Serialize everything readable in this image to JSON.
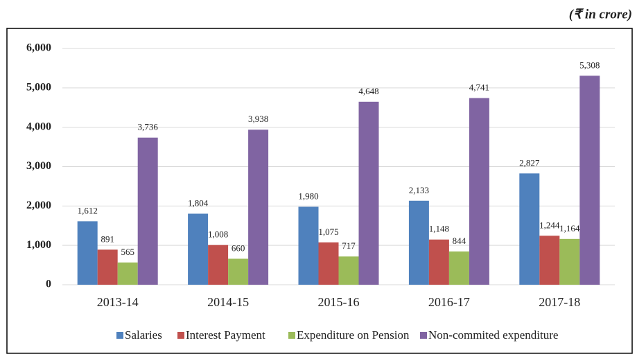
{
  "chart_data": {
    "type": "bar",
    "annotation": "(₹ in crore)",
    "categories": [
      "2013-14",
      "2014-15",
      "2015-16",
      "2016-17",
      "2017-18"
    ],
    "series": [
      {
        "name": "Salaries",
        "color": "#4f81bd",
        "values": [
          1612,
          1804,
          1980,
          2133,
          2827
        ],
        "value_labels": [
          "1,612",
          "1,804",
          "1,980",
          "2,133",
          "2,827"
        ]
      },
      {
        "name": "Interest Payment",
        "color": "#c0504d",
        "values": [
          891,
          1008,
          1075,
          1148,
          1244
        ],
        "value_labels": [
          "891",
          "1,008",
          "1,075",
          "1,148",
          "1,244"
        ]
      },
      {
        "name": "Expenditure on Pension",
        "color": "#9bbb59",
        "values": [
          565,
          660,
          717,
          844,
          1164
        ],
        "value_labels": [
          "565",
          "660",
          "717",
          "844",
          "1,164"
        ]
      },
      {
        "name": "Non-commited expenditure",
        "color": "#8064a2",
        "values": [
          3736,
          3938,
          4648,
          4741,
          5308
        ],
        "value_labels": [
          "3,736",
          "3,938",
          "4,648",
          "4,741",
          "5,308"
        ]
      }
    ],
    "ylim": [
      0,
      6000
    ],
    "yticks": [
      0,
      {
        "value": 1000,
        "label": "1,000"
      },
      {
        "value": 2000,
        "label": "2,000"
      },
      {
        "value": 3000,
        "label": "3,000"
      },
      {
        "value": 4000,
        "label": "4,000"
      },
      {
        "value": 5000,
        "label": "5,000"
      },
      {
        "value": 6000,
        "label": "6,000"
      }
    ],
    "grid": true,
    "legend": "bottom"
  }
}
